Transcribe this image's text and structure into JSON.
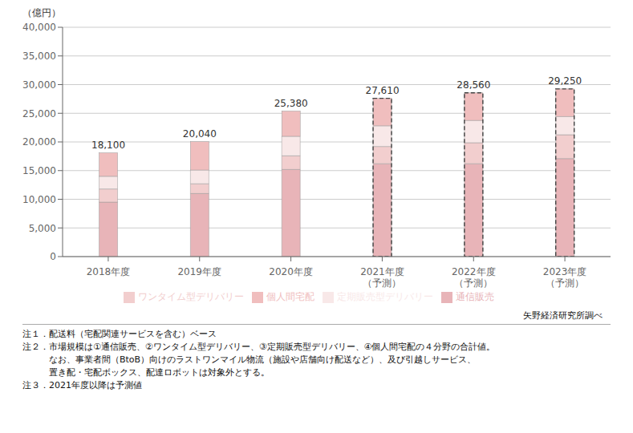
{
  "chart_data": {
    "type": "bar",
    "stacked": true,
    "categories": [
      "2018年度",
      "2019年度",
      "2020年度",
      "2021年度\n（予測）",
      "2022年度\n（予測）",
      "2023年度\n（予測）"
    ],
    "series": [
      {
        "name": "通信販売",
        "color": "#E8B4B8",
        "values": [
          9500,
          11000,
          15200,
          16200,
          16200,
          17100
        ]
      },
      {
        "name": "ワンタイム型デリバリー",
        "color": "#F2CECE",
        "values": [
          2300,
          1700,
          2380,
          3010,
          3660,
          4150
        ]
      },
      {
        "name": "定期販売型デリバリー",
        "color": "#F8E8E8",
        "values": [
          2200,
          2400,
          3400,
          3600,
          3900,
          3200
        ]
      },
      {
        "name": "個人間宅配",
        "color": "#F0BEBE",
        "values": [
          4100,
          4940,
          4400,
          4800,
          4800,
          4800
        ]
      }
    ],
    "totals": {
      "values": [
        18100,
        20040,
        25380,
        27610,
        28560,
        29250
      ],
      "value_labels": [
        "18,100",
        "20,040",
        "25,380",
        "27,610",
        "28,560",
        "29,250"
      ]
    },
    "forecast": [
      false,
      false,
      false,
      true,
      true,
      true
    ],
    "ylabel": "（億円）",
    "ylim": [
      0,
      40000
    ],
    "yticks": [
      0,
      {
        "value": 5000,
        "label": "5,000"
      },
      {
        "value": 10000,
        "label": "10,000"
      },
      {
        "value": 15000,
        "label": "15,000"
      },
      {
        "value": 20000,
        "label": "20,000"
      },
      {
        "value": 25000,
        "label": "25,000"
      },
      {
        "value": 30000,
        "label": "30,000"
      },
      {
        "value": 35000,
        "label": "35,000"
      },
      {
        "value": 40000,
        "label": "40,000"
      }
    ],
    "grid": true,
    "legend": "bottom",
    "source": "矢野経済研究所調べ",
    "notes": [
      "注１．配送料（宅配関連サービスを含む）ベース",
      "注２．市場規模は①通信販売、②ワンタイム型デリバリー、③定期販売型デリバリー、④個人間宅配の４分野の合計値。",
      "　　　なお、事業者間（BtoB）向けのラストワンマイル物流（施設や店舗向け配送など）、及び引越しサービス、",
      "　　　置き配・宅配ボックス、配達ロボットは対象外とする。",
      "注３．2021年度以降は予測値"
    ]
  }
}
